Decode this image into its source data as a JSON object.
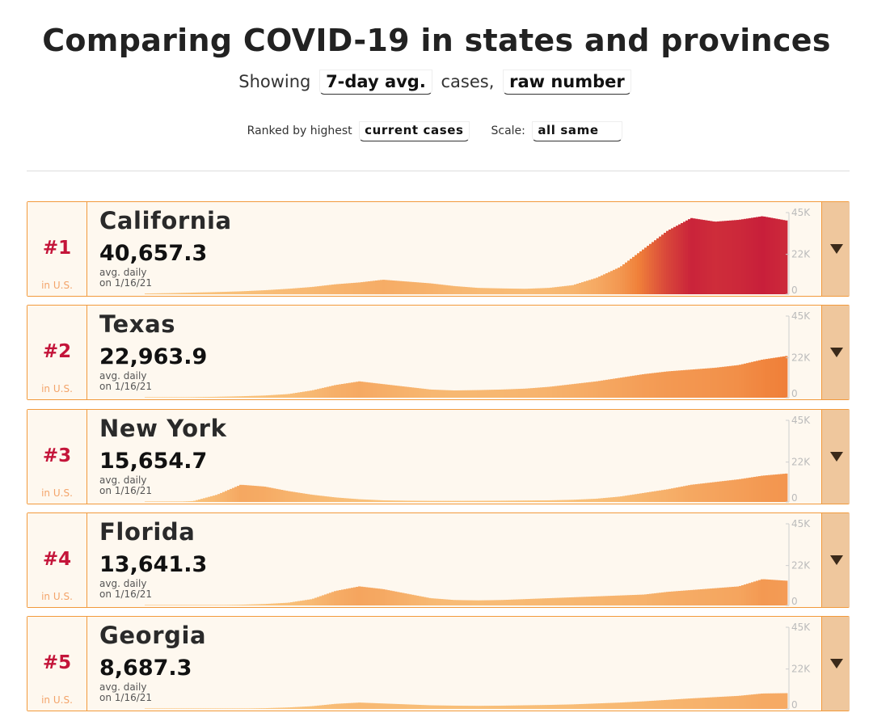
{
  "header": {
    "title": "Comparing COVID-19 in states and provinces",
    "showing_prefix": "Showing",
    "metric_select": "7-day avg.",
    "cases_text": "cases,",
    "number_select": "raw number",
    "ranked_prefix": "Ranked by highest",
    "ranked_select": "current cases",
    "scale_prefix": "Scale:",
    "scale_select": "all same"
  },
  "axis": {
    "top": "45K",
    "mid": "22K",
    "zero": "0"
  },
  "colors": {
    "border": "#f29a3c",
    "rank": "#c4153a",
    "low": "#f9c47e",
    "mid": "#f0813a",
    "high": "#c4153a",
    "button": "#efc79d"
  },
  "rows": [
    {
      "rank": "#1",
      "in_us": "in U.S.",
      "name": "California",
      "value": "40,657.3",
      "avg_label": "avg. daily",
      "date_label": "on 1/16/21",
      "expand_icon": "triangle-down"
    },
    {
      "rank": "#2",
      "in_us": "in U.S.",
      "name": "Texas",
      "value": "22,963.9",
      "avg_label": "avg. daily",
      "date_label": "on 1/16/21",
      "expand_icon": "triangle-down"
    },
    {
      "rank": "#3",
      "in_us": "in U.S.",
      "name": "New York",
      "value": "15,654.7",
      "avg_label": "avg. daily",
      "date_label": "on 1/16/21",
      "expand_icon": "triangle-down"
    },
    {
      "rank": "#4",
      "in_us": "in U.S.",
      "name": "Florida",
      "value": "13,641.3",
      "avg_label": "avg. daily",
      "date_label": "on 1/16/21",
      "expand_icon": "triangle-down"
    },
    {
      "rank": "#5",
      "in_us": "in U.S.",
      "name": "Georgia",
      "value": "8,687.3",
      "avg_label": "avg. daily",
      "date_label": "on 1/16/21",
      "expand_icon": "triangle-down"
    }
  ],
  "chart_data": [
    {
      "type": "area",
      "series": [
        {
          "name": "California",
          "values": [
            400,
            600,
            900,
            1200,
            1600,
            2200,
            3000,
            4000,
            5500,
            6500,
            8000,
            7000,
            6000,
            4500,
            3500,
            3200,
            3000,
            3500,
            5000,
            9000,
            15000,
            25000,
            35000,
            42000,
            40000,
            41000,
            43000,
            40657
          ]
        }
      ],
      "ylim": [
        0,
        45000
      ],
      "yticks": [
        "45K",
        "22K",
        "0"
      ]
    },
    {
      "type": "area",
      "series": [
        {
          "name": "Texas",
          "values": [
            100,
            200,
            300,
            500,
            800,
            1200,
            2000,
            4000,
            7000,
            9000,
            7500,
            6000,
            4500,
            4000,
            4200,
            4500,
            5000,
            6000,
            7500,
            9000,
            11000,
            13000,
            14500,
            15500,
            16500,
            18000,
            21000,
            22964
          ]
        }
      ],
      "ylim": [
        0,
        45000
      ],
      "yticks": [
        "45K",
        "22K",
        "0"
      ]
    },
    {
      "type": "area",
      "series": [
        {
          "name": "New York",
          "values": [
            0,
            0,
            500,
            4000,
            9500,
            8500,
            6000,
            4000,
            2500,
            1500,
            900,
            700,
            600,
            600,
            650,
            700,
            800,
            900,
            1200,
            1800,
            3000,
            5000,
            7000,
            9500,
            11000,
            12500,
            14500,
            15655
          ]
        }
      ],
      "ylim": [
        0,
        45000
      ],
      "yticks": [
        "45K",
        "22K",
        "0"
      ]
    },
    {
      "type": "area",
      "series": [
        {
          "name": "Florida",
          "values": [
            0,
            0,
            100,
            200,
            400,
            800,
            1500,
            3500,
            8000,
            10500,
            9000,
            6500,
            4000,
            3000,
            2800,
            3000,
            3500,
            4000,
            4500,
            5000,
            5500,
            6000,
            7500,
            8500,
            9500,
            10500,
            14500,
            13641
          ]
        }
      ],
      "ylim": [
        0,
        45000
      ],
      "yticks": [
        "45K",
        "22K",
        "0"
      ]
    },
    {
      "type": "area",
      "series": [
        {
          "name": "Georgia",
          "values": [
            0,
            0,
            50,
            100,
            200,
            400,
            800,
            1500,
            2800,
            3500,
            3000,
            2500,
            2000,
            1800,
            1700,
            1800,
            2000,
            2200,
            2500,
            3000,
            3500,
            4200,
            5000,
            5800,
            6500,
            7200,
            8500,
            8687
          ]
        }
      ],
      "ylim": [
        0,
        45000
      ],
      "yticks": [
        "45K",
        "22K",
        "0"
      ]
    }
  ]
}
